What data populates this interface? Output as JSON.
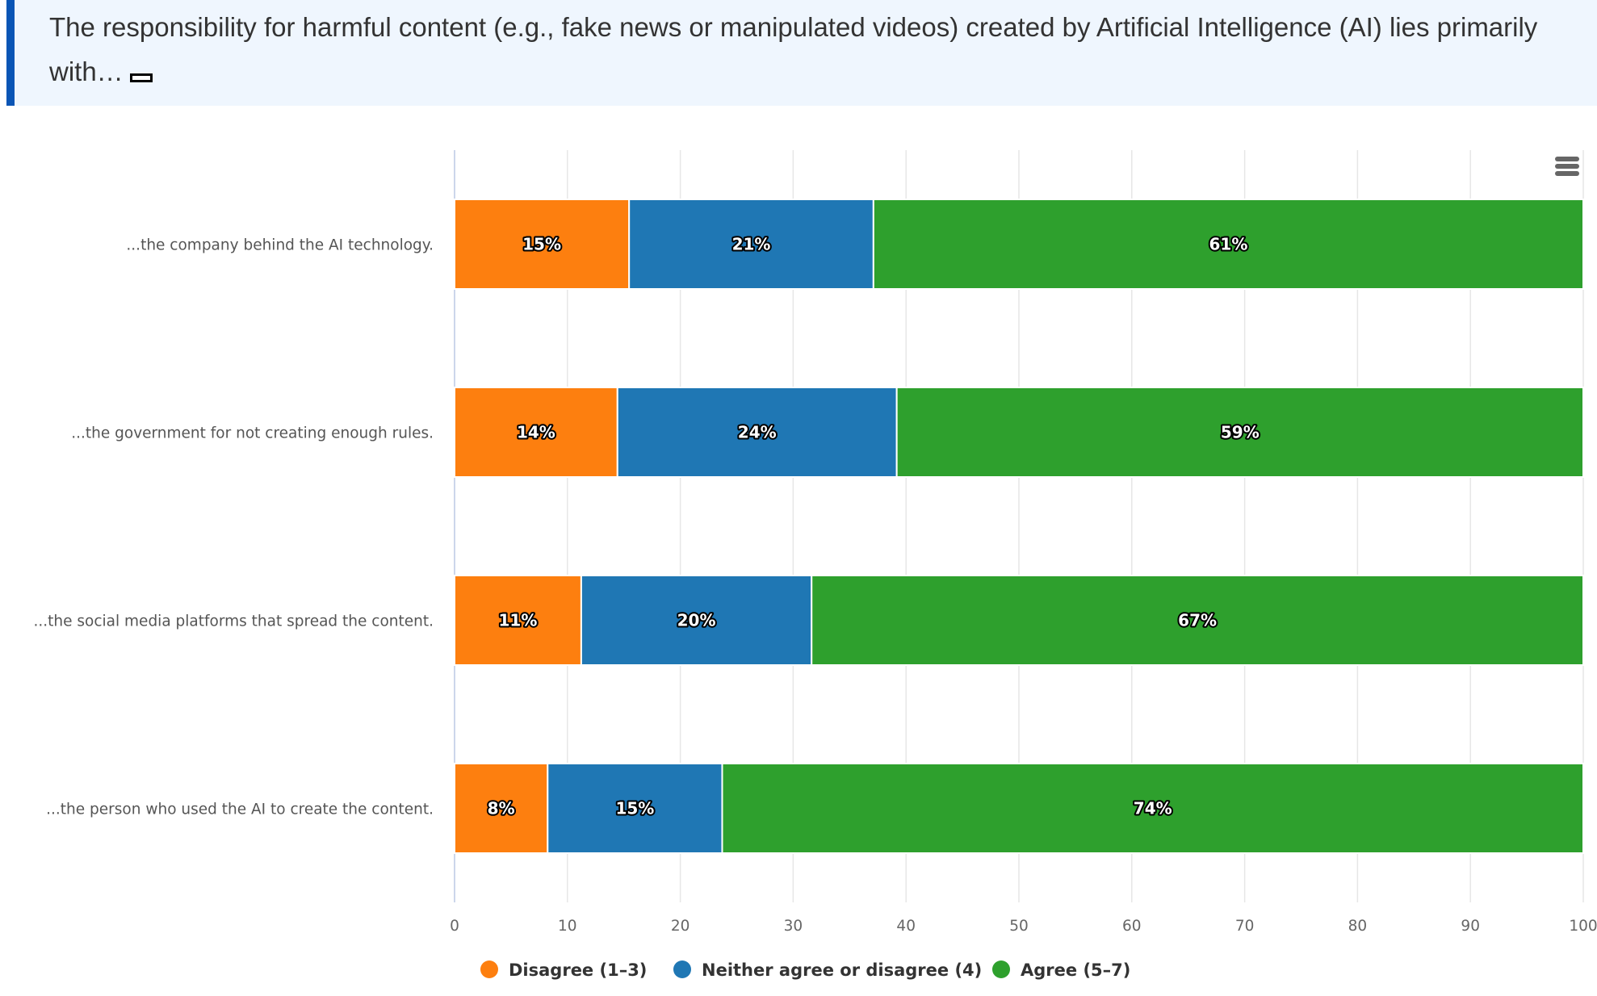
{
  "question": {
    "text": "The responsibility for harmful content (e.g., fake news or manipulated videos) created by Artificial Intelligence (AI) lies primarily with…",
    "note_icon": "footnote-box-icon"
  },
  "menu": {
    "icon": "hamburger-menu-icon"
  },
  "colors": {
    "disagree": "#fd7f0f",
    "neither": "#1f77b4",
    "agree": "#2ea02d",
    "gridline": "#e6e6e6",
    "axis_line": "#ccd6eb",
    "header_bg": "#eff6fe",
    "header_accent": "#0a55b5"
  },
  "chart_data": {
    "type": "bar",
    "orientation": "horizontal",
    "stacking": "percent",
    "title": "",
    "xlabel": "",
    "ylabel": "",
    "xlim": [
      0,
      100
    ],
    "xticks": [
      0,
      10,
      20,
      30,
      40,
      50,
      60,
      70,
      80,
      90,
      100
    ],
    "grid": true,
    "legend_position": "bottom-center",
    "categories": [
      "...the company behind the AI technology.",
      "...the government for not creating enough rules.",
      "...the social media platforms that spread the content.",
      "...the person who used the AI to create the content."
    ],
    "series": [
      {
        "name": "Disagree (1–3)",
        "color_key": "disagree",
        "values": [
          15,
          14,
          11,
          8
        ],
        "labels": [
          "15%",
          "14%",
          "11%",
          "8%"
        ]
      },
      {
        "name": "Neither agree or disagree (4)",
        "color_key": "neither",
        "values": [
          21,
          24,
          20,
          15
        ],
        "labels": [
          "21%",
          "24%",
          "20%",
          "15%"
        ]
      },
      {
        "name": "Agree (5–7)",
        "color_key": "agree",
        "values": [
          61,
          59,
          67,
          74
        ],
        "labels": [
          "61%",
          "59%",
          "67%",
          "74%"
        ]
      }
    ]
  }
}
